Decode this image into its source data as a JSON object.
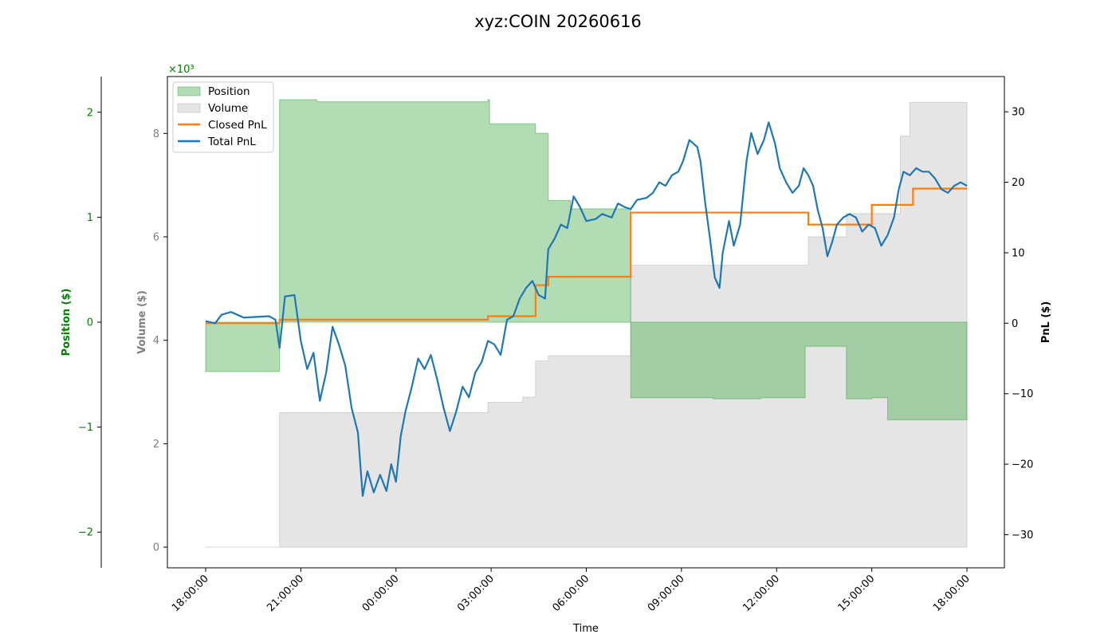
{
  "chart_data": {
    "type": "line",
    "title": "xyz:COIN 20260616",
    "xlabel": "Time",
    "x_ticks": [
      "18:00:00",
      "21:00:00",
      "00:00:00",
      "03:00:00",
      "06:00:00",
      "09:00:00",
      "12:00:00",
      "15:00:00",
      "18:00:00"
    ],
    "x_range_hours": [
      0,
      24
    ],
    "axes": {
      "position": {
        "label": "Position ($)",
        "multiplier_label": "×10³",
        "ticks": [
          -2,
          -1,
          0,
          1,
          2
        ],
        "range": [
          -2.34,
          2.34
        ],
        "color": "#008000"
      },
      "volume": {
        "label": "Volume ($)",
        "ticks": [
          0,
          2,
          4,
          6,
          8
        ],
        "range": [
          -0.4,
          9.1
        ],
        "color": "#808080"
      },
      "pnl": {
        "label": "PnL ($)",
        "ticks": [
          -30,
          -20,
          -10,
          0,
          10,
          20,
          30
        ],
        "range": [
          -34.7,
          35.0
        ],
        "color": "#000000"
      }
    },
    "legend": {
      "placement": "top-left",
      "entries": [
        "Position",
        "Volume",
        "Closed PnL",
        "Total PnL"
      ]
    },
    "grid": false,
    "colors": {
      "position_fill": "#4caf50",
      "volume_fill": "#bdbdbd",
      "closed_pnl": "#ff7f0e",
      "total_pnl": "#1f77b4",
      "position_axis": "#008000",
      "volume_axis": "#808080"
    },
    "series": [
      {
        "name": "Position",
        "kind": "step-area",
        "axis": "position",
        "points": [
          [
            0,
            -0.47
          ],
          [
            2.33,
            2.12
          ],
          [
            3.5,
            2.1
          ],
          [
            5.5,
            2.1
          ],
          [
            8.9,
            2.12
          ],
          [
            8.95,
            1.89
          ],
          [
            10.0,
            1.89
          ],
          [
            10.4,
            1.8
          ],
          [
            10.8,
            1.16
          ],
          [
            11.5,
            1.08
          ],
          [
            13.4,
            -0.72
          ],
          [
            16.0,
            -0.73
          ],
          [
            17.5,
            -0.72
          ],
          [
            18.9,
            -0.23
          ],
          [
            20.2,
            -0.73
          ],
          [
            21.0,
            -0.72
          ],
          [
            21.5,
            -0.93
          ],
          [
            24.0,
            -0.93
          ]
        ]
      },
      {
        "name": "Volume",
        "kind": "step-area",
        "axis": "volume",
        "points": [
          [
            0,
            0
          ],
          [
            2.33,
            2.6
          ],
          [
            8.9,
            2.8
          ],
          [
            10.0,
            2.9
          ],
          [
            10.4,
            3.6
          ],
          [
            10.8,
            3.7
          ],
          [
            13.4,
            5.45
          ],
          [
            19.0,
            6.0
          ],
          [
            20.2,
            6.45
          ],
          [
            21.0,
            6.45
          ],
          [
            21.9,
            7.95
          ],
          [
            22.2,
            8.6
          ],
          [
            24.0,
            8.6
          ]
        ]
      },
      {
        "name": "Closed PnL",
        "kind": "step-line",
        "axis": "pnl",
        "points": [
          [
            0,
            0
          ],
          [
            2.33,
            0.5
          ],
          [
            8.9,
            1.0
          ],
          [
            10.4,
            5.4
          ],
          [
            10.8,
            6.6
          ],
          [
            13.4,
            15.7
          ],
          [
            19.0,
            14.0
          ],
          [
            21.0,
            16.8
          ],
          [
            22.3,
            19.1
          ],
          [
            24.0,
            19.1
          ]
        ]
      },
      {
        "name": "Total PnL",
        "kind": "line",
        "axis": "pnl",
        "points": [
          [
            0,
            0.3
          ],
          [
            0.3,
            0.0
          ],
          [
            0.5,
            1.2
          ],
          [
            0.8,
            1.6
          ],
          [
            1.2,
            0.8
          ],
          [
            1.6,
            0.9
          ],
          [
            2.0,
            1.0
          ],
          [
            2.2,
            0.5
          ],
          [
            2.33,
            -3.5
          ],
          [
            2.5,
            3.8
          ],
          [
            2.8,
            4.0
          ],
          [
            3.0,
            -2.5
          ],
          [
            3.2,
            -6.5
          ],
          [
            3.4,
            -4.2
          ],
          [
            3.6,
            -11.0
          ],
          [
            3.8,
            -7.0
          ],
          [
            4.0,
            -0.5
          ],
          [
            4.2,
            -3.0
          ],
          [
            4.4,
            -6.0
          ],
          [
            4.6,
            -12.0
          ],
          [
            4.8,
            -15.5
          ],
          [
            4.95,
            -24.5
          ],
          [
            5.1,
            -21.0
          ],
          [
            5.3,
            -24.0
          ],
          [
            5.5,
            -21.5
          ],
          [
            5.7,
            -23.8
          ],
          [
            5.85,
            -20.0
          ],
          [
            6.0,
            -22.5
          ],
          [
            6.15,
            -16.0
          ],
          [
            6.3,
            -12.5
          ],
          [
            6.5,
            -9.0
          ],
          [
            6.7,
            -5.0
          ],
          [
            6.9,
            -6.5
          ],
          [
            7.1,
            -4.5
          ],
          [
            7.3,
            -8.0
          ],
          [
            7.5,
            -12.0
          ],
          [
            7.7,
            -15.3
          ],
          [
            7.9,
            -12.5
          ],
          [
            8.1,
            -9.0
          ],
          [
            8.3,
            -10.5
          ],
          [
            8.5,
            -7.0
          ],
          [
            8.7,
            -5.5
          ],
          [
            8.9,
            -2.5
          ],
          [
            9.1,
            -3.0
          ],
          [
            9.3,
            -4.5
          ],
          [
            9.5,
            0.5
          ],
          [
            9.7,
            1.0
          ],
          [
            9.9,
            3.5
          ],
          [
            10.1,
            5.0
          ],
          [
            10.3,
            6.0
          ],
          [
            10.5,
            4.0
          ],
          [
            10.7,
            3.5
          ],
          [
            10.8,
            10.5
          ],
          [
            11.0,
            12.0
          ],
          [
            11.2,
            14.0
          ],
          [
            11.4,
            13.5
          ],
          [
            11.6,
            18.0
          ],
          [
            11.8,
            16.5
          ],
          [
            12.0,
            14.5
          ],
          [
            12.3,
            14.8
          ],
          [
            12.5,
            15.5
          ],
          [
            12.8,
            15.0
          ],
          [
            13.0,
            17.0
          ],
          [
            13.2,
            16.5
          ],
          [
            13.4,
            16.2
          ],
          [
            13.6,
            17.5
          ],
          [
            13.9,
            17.8
          ],
          [
            14.1,
            18.5
          ],
          [
            14.3,
            20.0
          ],
          [
            14.5,
            19.5
          ],
          [
            14.7,
            21.0
          ],
          [
            14.9,
            21.5
          ],
          [
            15.05,
            23.0
          ],
          [
            15.25,
            26.0
          ],
          [
            15.5,
            25.0
          ],
          [
            15.6,
            23.0
          ],
          [
            15.75,
            17.0
          ],
          [
            15.9,
            12.0
          ],
          [
            16.05,
            6.5
          ],
          [
            16.2,
            5.0
          ],
          [
            16.3,
            10.0
          ],
          [
            16.5,
            14.5
          ],
          [
            16.65,
            11.0
          ],
          [
            16.85,
            14.0
          ],
          [
            17.05,
            23.0
          ],
          [
            17.2,
            27.0
          ],
          [
            17.4,
            24.0
          ],
          [
            17.6,
            26.0
          ],
          [
            17.75,
            28.5
          ],
          [
            17.95,
            25.5
          ],
          [
            18.1,
            22.0
          ],
          [
            18.3,
            20.0
          ],
          [
            18.5,
            18.5
          ],
          [
            18.7,
            19.5
          ],
          [
            18.85,
            22.0
          ],
          [
            19.0,
            21.0
          ],
          [
            19.15,
            19.5
          ],
          [
            19.3,
            16.0
          ],
          [
            19.45,
            13.5
          ],
          [
            19.6,
            9.5
          ],
          [
            19.75,
            11.5
          ],
          [
            19.9,
            14.0
          ],
          [
            20.1,
            15.0
          ],
          [
            20.3,
            15.5
          ],
          [
            20.5,
            15.0
          ],
          [
            20.7,
            13.0
          ],
          [
            20.9,
            14.0
          ],
          [
            21.1,
            13.5
          ],
          [
            21.3,
            11.0
          ],
          [
            21.5,
            12.5
          ],
          [
            21.7,
            15.0
          ],
          [
            21.85,
            19.0
          ],
          [
            22.0,
            21.5
          ],
          [
            22.2,
            21.0
          ],
          [
            22.4,
            22.0
          ],
          [
            22.6,
            21.5
          ],
          [
            22.8,
            21.5
          ],
          [
            23.0,
            20.5
          ],
          [
            23.2,
            19.0
          ],
          [
            23.4,
            18.5
          ],
          [
            23.6,
            19.5
          ],
          [
            23.8,
            20.0
          ],
          [
            24.0,
            19.5
          ]
        ]
      }
    ]
  }
}
